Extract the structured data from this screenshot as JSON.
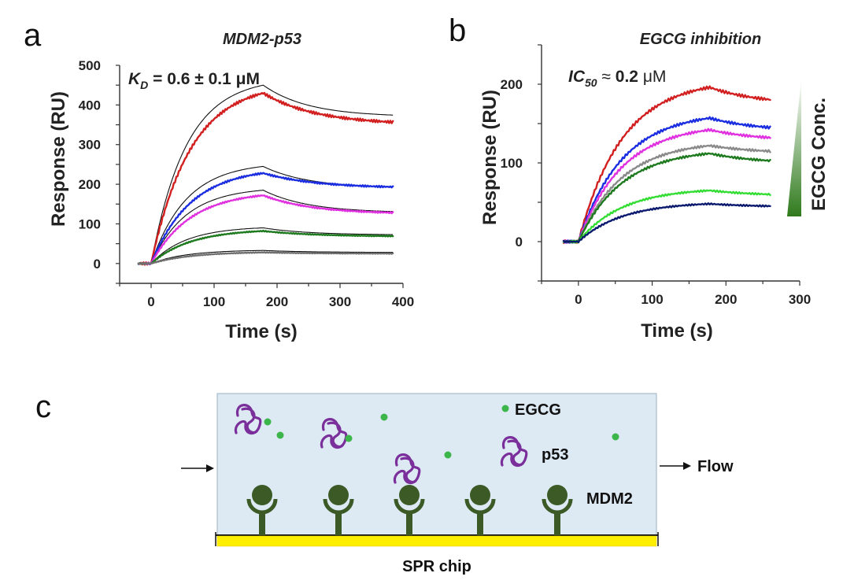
{
  "panel_a": {
    "letter": "a",
    "title": "MDM2-p53",
    "annotation": {
      "k_main": "K",
      "k_sub": "D",
      "value": " = 0.6 ± 0.1 μM"
    }
  },
  "panel_b": {
    "letter": "b",
    "title": "EGCG inhibition",
    "annotation": {
      "ic_main": "IC",
      "ic_sub": "50",
      "approx": " ≈ ",
      "value": "0.2",
      "unit": " μM"
    },
    "gradient_label": "EGCG Conc."
  },
  "panel_c": {
    "letter": "c",
    "labels": {
      "egcg": "EGCG",
      "p53": "p53",
      "flow": "Flow",
      "mdm2": "MDM2",
      "chip": "SPR chip"
    },
    "colors": {
      "buffer": "#dde9f3",
      "chip": "#ffee00",
      "mdm2": "#3b5a26",
      "p53": "#7a2f9b",
      "egcg": "#3cb54a"
    }
  },
  "chart_data": [
    {
      "type": "line",
      "panel": "a",
      "title": "MDM2-p53",
      "xlabel": "Time (s)",
      "ylabel": "Response (RU)",
      "xlim": [
        -50,
        400
      ],
      "ylim": [
        -50,
        500
      ],
      "xticks": [
        0,
        100,
        200,
        300,
        400
      ],
      "yticks": [
        0,
        100,
        200,
        300,
        400,
        500
      ],
      "grid": false,
      "legend": "none",
      "association_end": 178,
      "x_end": 385,
      "series": [
        {
          "color": "#d21f1f",
          "peak": 430,
          "final": 350,
          "off_rate": 0.012,
          "on_rate": 0.016
        },
        {
          "color": "#1a2de0",
          "peak": 228,
          "final": 190,
          "off_rate": 0.012,
          "on_rate": 0.016
        },
        {
          "color": "#e030e0",
          "peak": 172,
          "final": 125,
          "off_rate": 0.013,
          "on_rate": 0.016
        },
        {
          "color": "#1e7a1e",
          "peak": 82,
          "final": 68,
          "off_rate": 0.012,
          "on_rate": 0.016
        },
        {
          "color": "#707070",
          "peak": 28,
          "final": 25,
          "off_rate": 0.012,
          "on_rate": 0.016
        }
      ],
      "fits": [
        {
          "peak": 450,
          "final": 370
        },
        {
          "peak": 245,
          "final": 190
        },
        {
          "peak": 185,
          "final": 128
        },
        {
          "peak": 90,
          "final": 72
        },
        {
          "peak": 33,
          "final": 28
        }
      ]
    },
    {
      "type": "line",
      "panel": "b",
      "title": "EGCG inhibition",
      "xlabel": "Time (s)",
      "ylabel": "Response (RU)",
      "xlim": [
        -50,
        300
      ],
      "ylim": [
        -50,
        250
      ],
      "xticks": [
        0,
        100,
        200,
        300
      ],
      "yticks": [
        0,
        100,
        200
      ],
      "grid": false,
      "legend": "none",
      "association_end": 178,
      "x_end": 260,
      "series": [
        {
          "color": "#d21f1f",
          "peak": 196,
          "final": 174,
          "off_rate": 0.015,
          "on_rate": 0.017
        },
        {
          "color": "#1a2de0",
          "peak": 157,
          "final": 140,
          "off_rate": 0.015,
          "on_rate": 0.017
        },
        {
          "color": "#e030e0",
          "peak": 142,
          "final": 128,
          "off_rate": 0.015,
          "on_rate": 0.017
        },
        {
          "color": "#8a8a8a",
          "peak": 122,
          "final": 112,
          "off_rate": 0.015,
          "on_rate": 0.017
        },
        {
          "color": "#1e7a1e",
          "peak": 112,
          "final": 99,
          "off_rate": 0.015,
          "on_rate": 0.017
        },
        {
          "color": "#33dd33",
          "peak": 65,
          "final": 58,
          "off_rate": 0.015,
          "on_rate": 0.017
        },
        {
          "color": "#0b1a6e",
          "peak": 48,
          "final": 44,
          "off_rate": 0.015,
          "on_rate": 0.017
        }
      ]
    }
  ]
}
